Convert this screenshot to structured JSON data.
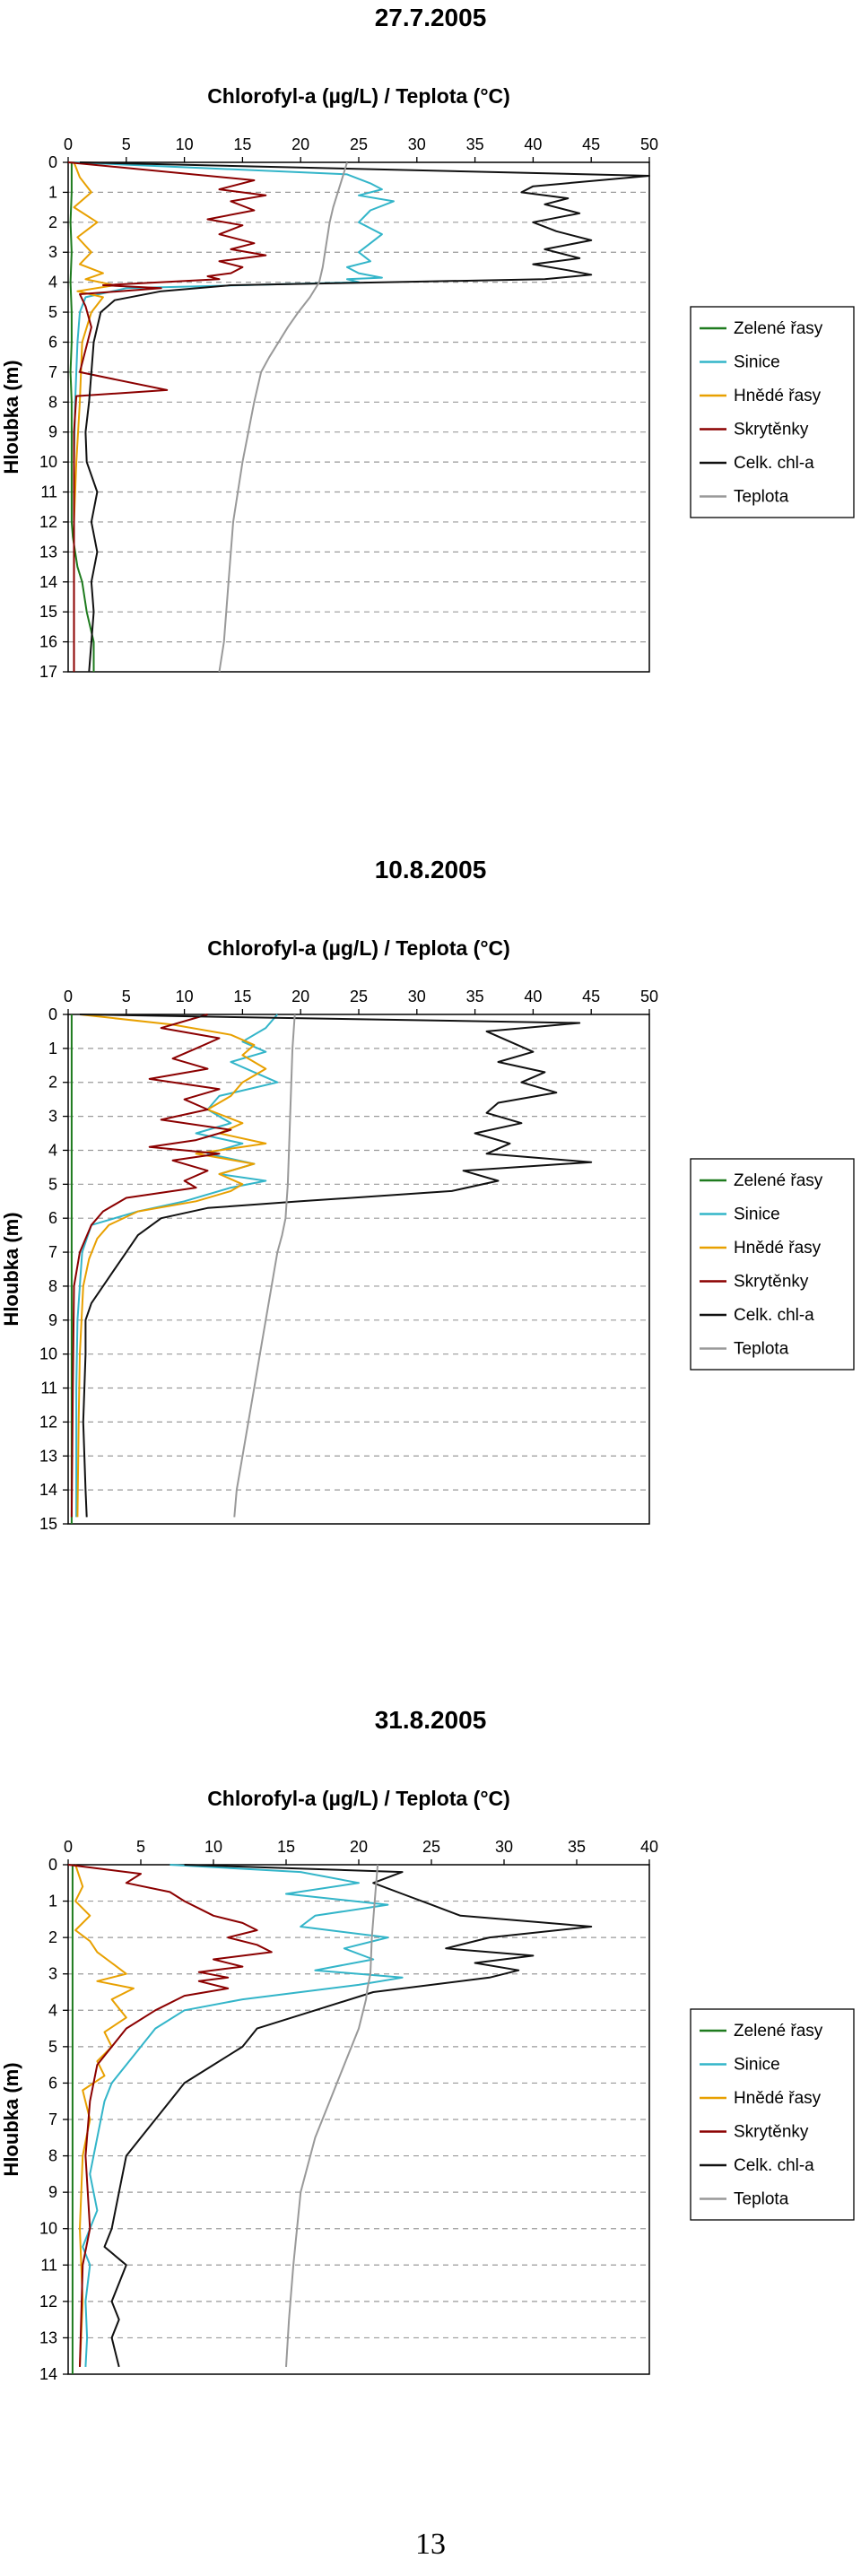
{
  "page": {
    "page_number": "13"
  },
  "chart_data": [
    {
      "type": "line",
      "title": "27.7.2005",
      "xlabel": "Chlorofyl-a (µg/L) / Teplota (°C)",
      "ylabel": "Hloubka (m)",
      "xlim": [
        0,
        50
      ],
      "ylim": [
        0,
        17
      ],
      "x_ticks": [
        0,
        5,
        10,
        15,
        20,
        25,
        30,
        35,
        40,
        45,
        50
      ],
      "y_ticks": [
        0,
        1,
        2,
        3,
        4,
        5,
        6,
        7,
        8,
        9,
        10,
        11,
        12,
        13,
        14,
        15,
        16,
        17
      ],
      "grid": "horizontal dashed",
      "legend_position": "right",
      "series": [
        {
          "name": "Zelené řasy",
          "color": "#1e7b1e",
          "x": [
            0.3,
            0.3,
            0.2,
            0.3,
            0.2,
            0.3,
            0.3,
            0.2,
            0.3,
            0.3,
            0.3,
            0.3,
            0.3,
            0.4,
            0.6,
            0.8,
            1.2,
            1.6,
            2.2,
            2.2
          ],
          "y": [
            0,
            1,
            2,
            3,
            4,
            5,
            6,
            7,
            8,
            9,
            10,
            11,
            12,
            12.5,
            13,
            13.5,
            14,
            15,
            16,
            17
          ]
        },
        {
          "name": "Sinice",
          "color": "#33b5c9",
          "x": [
            0.5,
            24,
            26,
            27,
            25,
            28,
            26,
            25,
            27,
            26,
            25,
            26,
            24,
            25,
            27,
            24,
            25,
            5,
            1.5,
            1,
            0.8,
            0.6,
            0.5,
            0.5,
            0.5
          ],
          "y": [
            0,
            0.4,
            0.7,
            0.9,
            1.1,
            1.3,
            1.6,
            2,
            2.4,
            2.7,
            3,
            3.3,
            3.5,
            3.7,
            3.85,
            3.9,
            4,
            4.2,
            4.5,
            5,
            6,
            8,
            10,
            14,
            17
          ]
        },
        {
          "name": "Hnědé řasy",
          "color": "#e8a000",
          "x": [
            0.5,
            1,
            2,
            0.5,
            2.5,
            0.8,
            2,
            1,
            3,
            1.5,
            4,
            0.8,
            3,
            2,
            1.2,
            1,
            0.7,
            0.5,
            0.5,
            0.5
          ],
          "y": [
            0,
            0.5,
            1,
            1.5,
            2,
            2.5,
            3,
            3.4,
            3.7,
            3.9,
            4.1,
            4.3,
            4.5,
            5,
            6,
            8,
            10,
            12,
            15,
            17
          ]
        },
        {
          "name": "Skrytěnky",
          "color": "#8b0000",
          "x": [
            0,
            16,
            13,
            17,
            14,
            16,
            12,
            15,
            13,
            16,
            14,
            17,
            13,
            15,
            14,
            12,
            13,
            3,
            8,
            1,
            1.5,
            2,
            1,
            8.5,
            0.7,
            0.5,
            0.5,
            0.5,
            0.5
          ],
          "y": [
            0,
            0.6,
            0.9,
            1.1,
            1.3,
            1.6,
            1.9,
            2.1,
            2.4,
            2.7,
            2.9,
            3.1,
            3.3,
            3.5,
            3.7,
            3.8,
            3.9,
            4.1,
            4.2,
            4.4,
            4.8,
            5.5,
            7,
            7.6,
            7.8,
            9,
            12,
            15,
            17
          ]
        },
        {
          "name": "Celk. chl-a",
          "color": "#111111",
          "x": [
            1,
            50,
            40,
            39,
            43,
            41,
            44,
            40,
            42,
            45,
            41,
            44,
            40,
            43,
            45,
            41,
            14,
            8,
            4,
            2.8,
            2.5,
            2.2,
            2,
            1.8,
            1.5,
            1.6,
            2.5,
            2,
            2.5,
            2,
            2.2,
            1.8
          ],
          "y": [
            0,
            0.45,
            0.8,
            1,
            1.2,
            1.4,
            1.7,
            2,
            2.3,
            2.6,
            2.9,
            3.2,
            3.4,
            3.6,
            3.75,
            3.9,
            4.1,
            4.3,
            4.6,
            5,
            5.5,
            6,
            7,
            8,
            9,
            10,
            11,
            12,
            13,
            14,
            15,
            17
          ]
        },
        {
          "name": "Teplota",
          "color": "#999999",
          "x": [
            24,
            23.6,
            23.2,
            22.8,
            22.5,
            22.3,
            22.1,
            21.9,
            21.6,
            20.8,
            19.8,
            18.9,
            18.1,
            17.3,
            16.6,
            16,
            15.5,
            15,
            14.6,
            14.2,
            13.8,
            13.4,
            13
          ],
          "y": [
            0,
            0.5,
            1,
            1.5,
            2,
            2.5,
            3,
            3.5,
            4,
            4.5,
            5,
            5.5,
            6,
            6.5,
            7,
            8,
            9,
            10,
            11,
            12,
            14,
            16,
            17
          ]
        }
      ]
    },
    {
      "type": "line",
      "title": "10.8.2005",
      "xlabel": "Chlorofyl-a (µg/L) / Teplota (°C)",
      "ylabel": "Hloubka (m)",
      "xlim": [
        0,
        50
      ],
      "ylim": [
        0,
        15
      ],
      "x_ticks": [
        0,
        5,
        10,
        15,
        20,
        25,
        30,
        35,
        40,
        45,
        50
      ],
      "y_ticks": [
        0,
        1,
        2,
        3,
        4,
        5,
        6,
        7,
        8,
        9,
        10,
        11,
        12,
        13,
        14,
        15
      ],
      "grid": "horizontal dashed",
      "legend_position": "right",
      "series": [
        {
          "name": "Zelené řasy",
          "color": "#1e7b1e",
          "x": [
            0.3,
            0.3,
            0.3,
            0.3,
            0.3,
            0.3,
            0.3,
            0.3,
            0.3,
            0.3,
            0.3,
            0.3,
            0.3,
            0.3,
            0.3,
            0.3
          ],
          "y": [
            0,
            1,
            2,
            3,
            4,
            5,
            6,
            7,
            8,
            9,
            10,
            11,
            12,
            13,
            14,
            15
          ]
        },
        {
          "name": "Sinice",
          "color": "#33b5c9",
          "x": [
            18,
            17,
            15,
            17,
            14,
            16,
            18,
            13,
            12,
            14,
            11,
            15,
            12,
            16,
            13,
            17,
            14,
            10,
            6,
            2,
            1.2,
            1,
            0.8,
            0.7,
            0.7,
            0.7
          ],
          "y": [
            0,
            0.4,
            0.8,
            1.1,
            1.4,
            1.7,
            2,
            2.4,
            2.8,
            3.2,
            3.5,
            3.8,
            4.1,
            4.4,
            4.7,
            4.9,
            5.1,
            5.5,
            5.8,
            6.2,
            7,
            8,
            9,
            11,
            13,
            14.8
          ]
        },
        {
          "name": "Hnědé řasy",
          "color": "#e8a000",
          "x": [
            1,
            9,
            14,
            16,
            15,
            17,
            15,
            14,
            12,
            15,
            13,
            17,
            11,
            16,
            13,
            15,
            14,
            11,
            6,
            3.5,
            2.5,
            1.8,
            1.3,
            1,
            0.9,
            0.8
          ],
          "y": [
            0,
            0.3,
            0.6,
            0.9,
            1.2,
            1.6,
            2,
            2.4,
            2.8,
            3.2,
            3.5,
            3.8,
            4.1,
            4.4,
            4.7,
            5,
            5.2,
            5.5,
            5.8,
            6.2,
            6.6,
            7.2,
            8,
            10,
            12,
            14.8
          ]
        },
        {
          "name": "Skrytěnky",
          "color": "#8b0000",
          "x": [
            12,
            8,
            13,
            11,
            9,
            12,
            7,
            13,
            10,
            12,
            8,
            14,
            11,
            7,
            13,
            9,
            12,
            10,
            11,
            5,
            3,
            2,
            1,
            0.5,
            0.4,
            0.3
          ],
          "y": [
            0,
            0.4,
            0.7,
            1,
            1.3,
            1.6,
            1.9,
            2.2,
            2.5,
            2.8,
            3.1,
            3.4,
            3.7,
            3.9,
            4.1,
            4.3,
            4.6,
            4.9,
            5.1,
            5.4,
            5.8,
            6.2,
            7,
            8,
            11,
            14.8
          ]
        },
        {
          "name": "Celk. chl-a",
          "color": "#111111",
          "x": [
            1,
            44,
            36,
            38,
            40,
            37,
            41,
            39,
            42,
            37,
            36,
            39,
            35,
            38,
            36,
            45,
            34,
            37,
            33,
            20,
            12,
            8,
            6,
            5,
            4,
            3,
            2,
            1.5,
            1.5,
            1.3,
            1.5,
            1.6
          ],
          "y": [
            0,
            0.25,
            0.5,
            0.8,
            1.1,
            1.4,
            1.7,
            2,
            2.3,
            2.6,
            2.9,
            3.2,
            3.5,
            3.8,
            4.1,
            4.35,
            4.6,
            4.9,
            5.2,
            5.5,
            5.7,
            6,
            6.5,
            7,
            7.5,
            8,
            8.5,
            9,
            10,
            12,
            14,
            14.8
          ]
        },
        {
          "name": "Teplota",
          "color": "#999999",
          "x": [
            19.5,
            19.3,
            19.2,
            19.1,
            19,
            18.9,
            18.8,
            18.7,
            18.4,
            18,
            17.5,
            17,
            16.5,
            16,
            15.5,
            15,
            14.5,
            14.3
          ],
          "y": [
            0,
            1,
            2,
            3,
            4,
            5,
            5.5,
            6,
            6.5,
            7,
            8,
            9,
            10,
            11,
            12,
            13,
            14,
            14.8
          ]
        }
      ]
    },
    {
      "type": "line",
      "title": "31.8.2005",
      "xlabel": "Chlorofyl-a (µg/L) / Teplota (°C)",
      "ylabel": "Hloubka (m)",
      "xlim": [
        0,
        40
      ],
      "ylim": [
        0,
        14
      ],
      "x_ticks": [
        0,
        5,
        10,
        15,
        20,
        25,
        30,
        35,
        40
      ],
      "y_ticks": [
        0,
        1,
        2,
        3,
        4,
        5,
        6,
        7,
        8,
        9,
        10,
        11,
        12,
        13,
        14
      ],
      "grid": "horizontal dashed",
      "legend_position": "right",
      "series": [
        {
          "name": "Zelené řasy",
          "color": "#1e7b1e",
          "x": [
            0.3,
            0.3,
            0.3,
            0.3,
            0.3,
            0.3,
            0.3,
            0.3,
            0.3,
            0.3,
            0.3,
            0.3,
            0.3,
            0.3,
            0.3
          ],
          "y": [
            0,
            1,
            2,
            3,
            4,
            5,
            6,
            7,
            8,
            9,
            10,
            11,
            12,
            13,
            14
          ]
        },
        {
          "name": "Sinice",
          "color": "#33b5c9",
          "x": [
            7,
            16,
            20,
            15,
            22,
            17,
            16,
            22,
            19,
            21,
            17,
            23,
            20,
            16,
            12,
            8,
            6,
            5,
            4,
            3,
            2.5,
            2,
            1.5,
            2,
            1,
            1.5,
            1.2,
            1.3,
            1.2
          ],
          "y": [
            0,
            0.2,
            0.5,
            0.8,
            1.1,
            1.4,
            1.7,
            2,
            2.3,
            2.6,
            2.9,
            3.1,
            3.3,
            3.5,
            3.7,
            4,
            4.5,
            5,
            5.5,
            6,
            6.5,
            7.5,
            8.5,
            9.5,
            10.5,
            11,
            12,
            13,
            13.8
          ]
        },
        {
          "name": "Hnědé řasy",
          "color": "#e8a000",
          "x": [
            0.5,
            1,
            0.5,
            1.5,
            0.5,
            1.5,
            2,
            3,
            4,
            2,
            4.5,
            3,
            4,
            2.5,
            3,
            2,
            2.5,
            1,
            1.5,
            1,
            0.8,
            1,
            0.8
          ],
          "y": [
            0,
            0.6,
            1,
            1.4,
            1.8,
            2.1,
            2.4,
            2.7,
            3,
            3.2,
            3.4,
            3.7,
            4.2,
            4.6,
            5,
            5.4,
            5.8,
            6.2,
            7,
            8,
            10,
            12,
            13.8
          ]
        },
        {
          "name": "Skrytěnky",
          "color": "#8b0000",
          "x": [
            0,
            5,
            4,
            7,
            8,
            9,
            10,
            12,
            13,
            11,
            13,
            14,
            10,
            12,
            9,
            11,
            9,
            11,
            8,
            6,
            4,
            3,
            2,
            1.5,
            1.2,
            1.5,
            1,
            0.8
          ],
          "y": [
            0,
            0.25,
            0.5,
            0.75,
            1,
            1.2,
            1.4,
            1.6,
            1.8,
            2,
            2.2,
            2.4,
            2.6,
            2.8,
            2.95,
            3.1,
            3.2,
            3.4,
            3.6,
            4,
            4.5,
            5,
            5.5,
            6.5,
            8,
            10,
            11,
            13.8
          ]
        },
        {
          "name": "Celk. chl-a",
          "color": "#111111",
          "x": [
            8,
            23,
            21,
            23,
            25,
            27,
            36,
            29,
            26,
            32,
            28,
            31,
            29,
            21,
            17,
            13,
            12,
            10,
            8,
            7,
            6,
            5,
            4,
            3.5,
            3,
            2.5,
            4,
            3,
            3.5,
            3,
            3.5
          ],
          "y": [
            0,
            0.2,
            0.5,
            0.8,
            1.1,
            1.4,
            1.7,
            2,
            2.3,
            2.5,
            2.7,
            2.9,
            3.1,
            3.5,
            4,
            4.5,
            5,
            5.5,
            6,
            6.5,
            7,
            7.5,
            8,
            9,
            10,
            10.5,
            11,
            12,
            12.5,
            13,
            13.8
          ]
        },
        {
          "name": "Teplota",
          "color": "#999999",
          "x": [
            21.3,
            21.1,
            20.9,
            20.8,
            20.6,
            20.5,
            20,
            19,
            18,
            17,
            16,
            15.5,
            15.2,
            15
          ],
          "y": [
            0,
            1,
            2,
            3,
            3.4,
            3.7,
            4.5,
            5.5,
            6.5,
            7.5,
            9,
            11,
            12.5,
            13.8
          ]
        }
      ]
    }
  ]
}
